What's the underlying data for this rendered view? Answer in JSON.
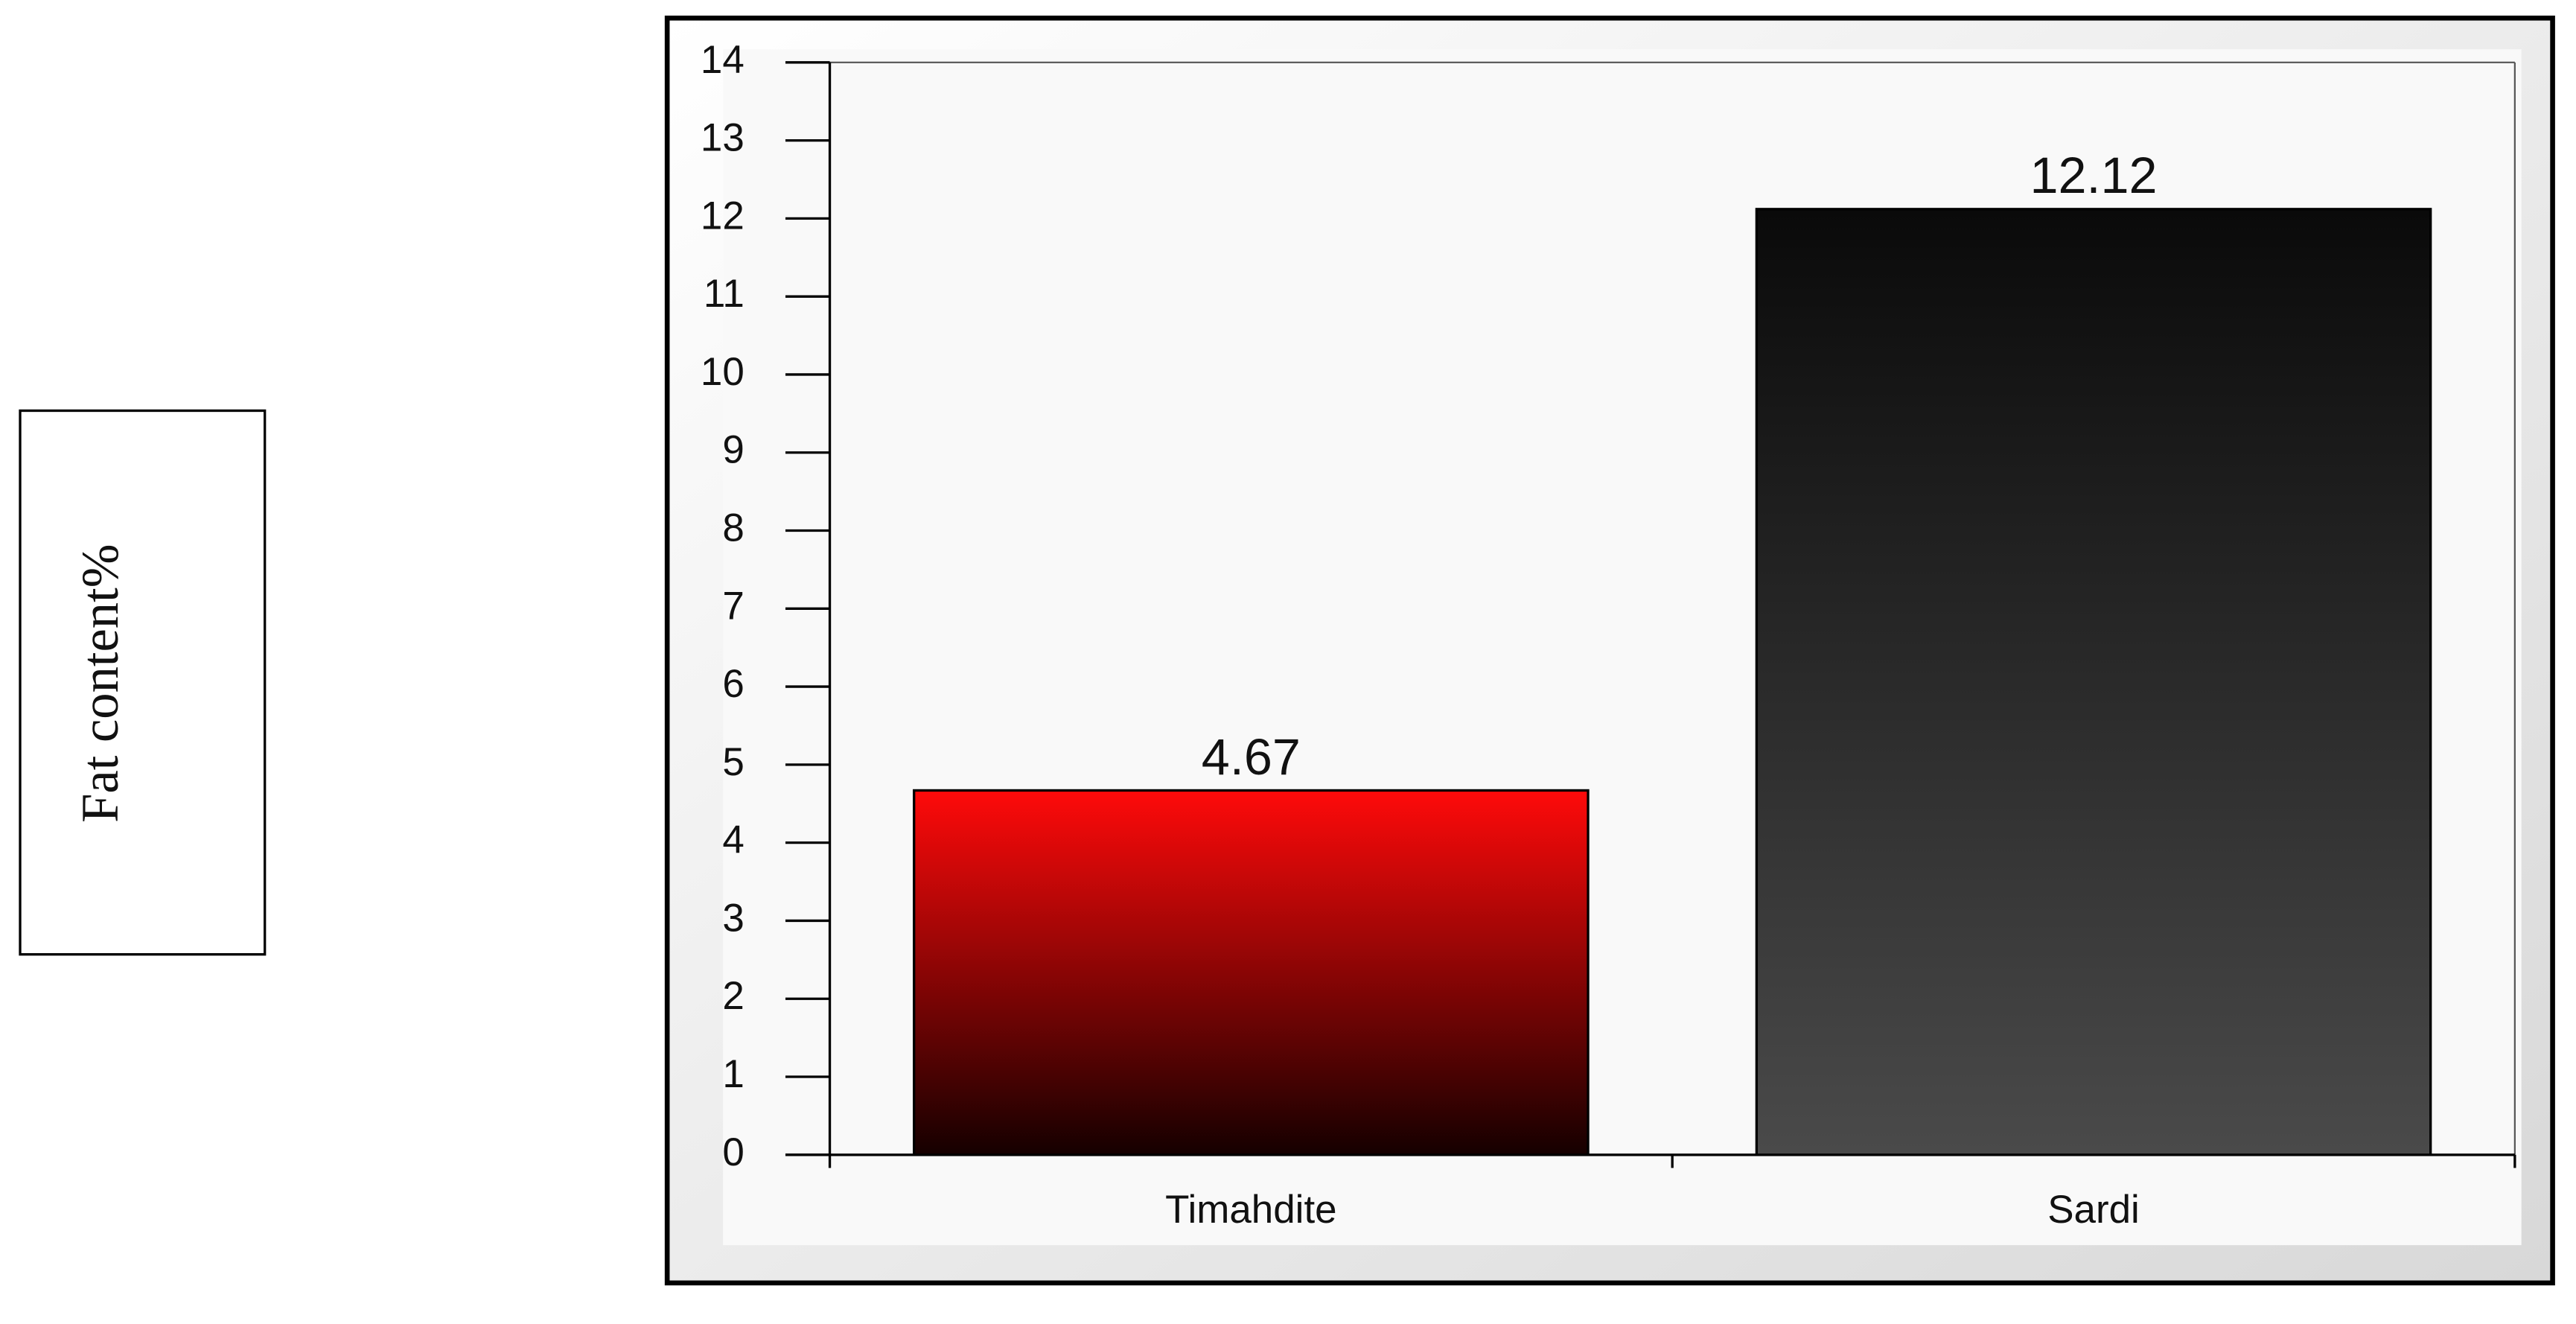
{
  "chart_data": {
    "type": "bar",
    "y_label": "Fat content%",
    "categories": [
      "Timahdite",
      "Sardi"
    ],
    "values": [
      4.67,
      12.12
    ],
    "colors": [
      [
        "#ff0a0a",
        "#150000"
      ],
      [
        "#0a0a0a",
        "#4a4a4a"
      ]
    ],
    "ylim": [
      0,
      14
    ],
    "yticks": [
      0,
      1,
      2,
      3,
      4,
      5,
      6,
      7,
      8,
      9,
      10,
      11,
      12,
      13,
      14
    ]
  }
}
